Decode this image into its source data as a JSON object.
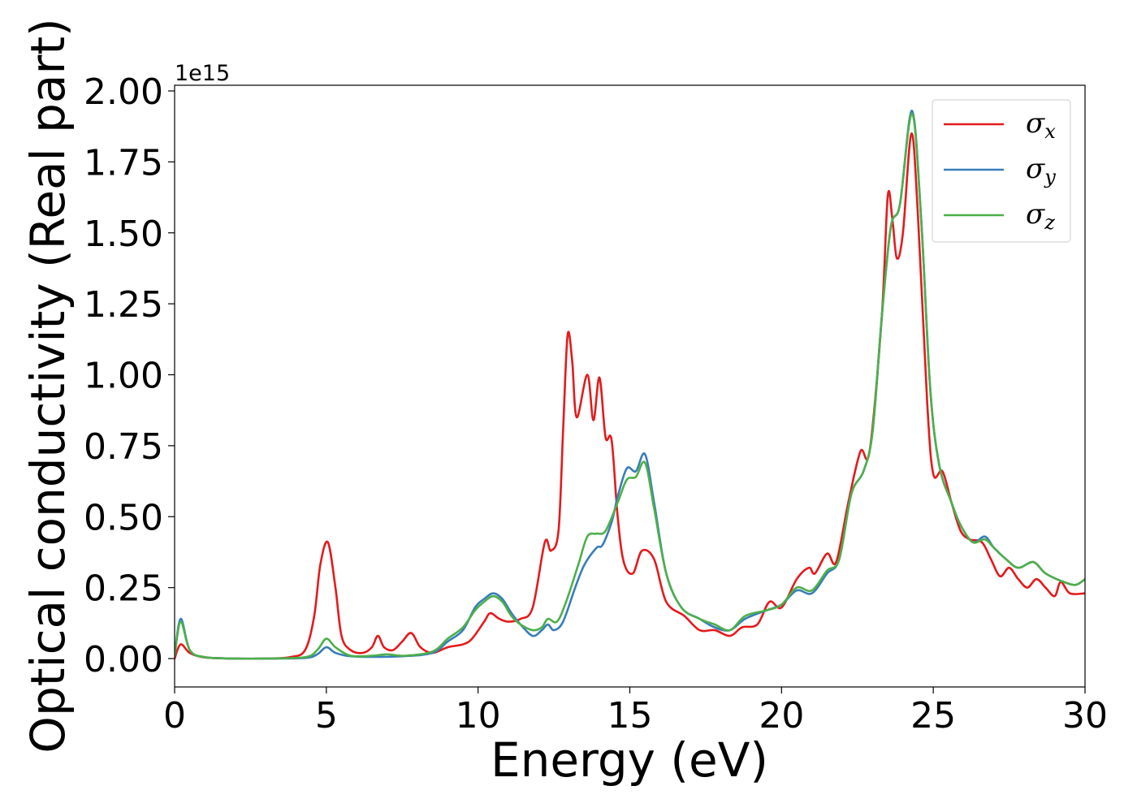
{
  "chart_data": {
    "type": "line",
    "xlabel": "Energy (eV)",
    "ylabel": "Optical conductivity (Real part)",
    "y_offset_label": "1e15",
    "xlim": [
      0,
      30
    ],
    "ylim": [
      -0.1,
      2.02
    ],
    "x_ticks": [
      0,
      5,
      10,
      15,
      20,
      25,
      30
    ],
    "x_tick_labels": [
      "0",
      "5",
      "10",
      "15",
      "20",
      "25",
      "30"
    ],
    "y_ticks": [
      0,
      0.25,
      0.5,
      0.75,
      1.0,
      1.25,
      1.5,
      1.75,
      2.0
    ],
    "y_tick_labels": [
      "0.00",
      "0.25",
      "0.50",
      "0.75",
      "1.00",
      "1.25",
      "1.50",
      "1.75",
      "2.00"
    ],
    "grid": false,
    "legend_position": "top-right",
    "series": [
      {
        "name": "σ_x",
        "base": "σ",
        "sub": "x",
        "color": "#e41a1c",
        "points": [
          [
            0,
            0
          ],
          [
            0.2,
            0.05
          ],
          [
            0.5,
            0.02
          ],
          [
            1,
            0.004
          ],
          [
            2,
            0
          ],
          [
            3,
            0
          ],
          [
            3.8,
            0.005
          ],
          [
            4.3,
            0.03
          ],
          [
            4.6,
            0.15
          ],
          [
            4.8,
            0.33
          ],
          [
            5.05,
            0.41
          ],
          [
            5.3,
            0.25
          ],
          [
            5.5,
            0.08
          ],
          [
            5.8,
            0.03
          ],
          [
            6.2,
            0.02
          ],
          [
            6.5,
            0.04
          ],
          [
            6.7,
            0.08
          ],
          [
            6.9,
            0.04
          ],
          [
            7.2,
            0.03
          ],
          [
            7.5,
            0.06
          ],
          [
            7.8,
            0.09
          ],
          [
            8.1,
            0.04
          ],
          [
            8.5,
            0.02
          ],
          [
            9,
            0.04
          ],
          [
            9.5,
            0.05
          ],
          [
            9.8,
            0.07
          ],
          [
            10.2,
            0.13
          ],
          [
            10.4,
            0.16
          ],
          [
            10.7,
            0.14
          ],
          [
            11,
            0.13
          ],
          [
            11.4,
            0.14
          ],
          [
            11.8,
            0.18
          ],
          [
            12.2,
            0.41
          ],
          [
            12.4,
            0.38
          ],
          [
            12.65,
            0.45
          ],
          [
            12.8,
            0.8
          ],
          [
            12.95,
            1.14
          ],
          [
            13.1,
            1.05
          ],
          [
            13.25,
            0.85
          ],
          [
            13.6,
            1.0
          ],
          [
            13.8,
            0.84
          ],
          [
            14.0,
            0.99
          ],
          [
            14.2,
            0.78
          ],
          [
            14.4,
            0.77
          ],
          [
            14.6,
            0.5
          ],
          [
            14.8,
            0.34
          ],
          [
            15.1,
            0.3
          ],
          [
            15.4,
            0.38
          ],
          [
            15.8,
            0.35
          ],
          [
            16.2,
            0.2
          ],
          [
            16.8,
            0.15
          ],
          [
            17.3,
            0.1
          ],
          [
            17.8,
            0.1
          ],
          [
            18.3,
            0.08
          ],
          [
            18.7,
            0.11
          ],
          [
            19.2,
            0.12
          ],
          [
            19.6,
            0.2
          ],
          [
            20.0,
            0.18
          ],
          [
            20.5,
            0.28
          ],
          [
            20.9,
            0.32
          ],
          [
            21.1,
            0.3
          ],
          [
            21.5,
            0.37
          ],
          [
            21.8,
            0.34
          ],
          [
            22.2,
            0.55
          ],
          [
            22.6,
            0.73
          ],
          [
            22.9,
            0.73
          ],
          [
            23.3,
            1.2
          ],
          [
            23.5,
            1.63
          ],
          [
            23.65,
            1.55
          ],
          [
            23.8,
            1.41
          ],
          [
            24.0,
            1.5
          ],
          [
            24.28,
            1.85
          ],
          [
            24.5,
            1.55
          ],
          [
            24.8,
            0.9
          ],
          [
            25.0,
            0.65
          ],
          [
            25.3,
            0.66
          ],
          [
            25.6,
            0.55
          ],
          [
            25.9,
            0.45
          ],
          [
            26.2,
            0.42
          ],
          [
            26.6,
            0.41
          ],
          [
            26.9,
            0.35
          ],
          [
            27.2,
            0.29
          ],
          [
            27.5,
            0.32
          ],
          [
            27.8,
            0.28
          ],
          [
            28.1,
            0.25
          ],
          [
            28.4,
            0.28
          ],
          [
            28.7,
            0.25
          ],
          [
            29.0,
            0.22
          ],
          [
            29.2,
            0.27
          ],
          [
            29.5,
            0.23
          ],
          [
            30,
            0.23
          ]
        ]
      },
      {
        "name": "σ_y",
        "base": "σ",
        "sub": "y",
        "color": "#377eb8",
        "points": [
          [
            0,
            0.01
          ],
          [
            0.2,
            0.14
          ],
          [
            0.5,
            0.03
          ],
          [
            1,
            0.005
          ],
          [
            2,
            0
          ],
          [
            3,
            0
          ],
          [
            4.3,
            0.002
          ],
          [
            4.7,
            0.015
          ],
          [
            5.0,
            0.04
          ],
          [
            5.3,
            0.02
          ],
          [
            5.8,
            0.008
          ],
          [
            6.5,
            0.006
          ],
          [
            7.5,
            0.008
          ],
          [
            8.5,
            0.02
          ],
          [
            9.0,
            0.06
          ],
          [
            9.5,
            0.1
          ],
          [
            9.9,
            0.18
          ],
          [
            10.2,
            0.21
          ],
          [
            10.5,
            0.23
          ],
          [
            10.8,
            0.21
          ],
          [
            11.1,
            0.16
          ],
          [
            11.4,
            0.12
          ],
          [
            11.8,
            0.08
          ],
          [
            12.1,
            0.1
          ],
          [
            12.3,
            0.12
          ],
          [
            12.5,
            0.1
          ],
          [
            12.8,
            0.13
          ],
          [
            13.2,
            0.25
          ],
          [
            13.5,
            0.33
          ],
          [
            13.9,
            0.39
          ],
          [
            14.1,
            0.4
          ],
          [
            14.4,
            0.48
          ],
          [
            14.6,
            0.57
          ],
          [
            14.9,
            0.67
          ],
          [
            15.2,
            0.66
          ],
          [
            15.5,
            0.72
          ],
          [
            15.8,
            0.55
          ],
          [
            16.2,
            0.3
          ],
          [
            16.7,
            0.18
          ],
          [
            17.3,
            0.14
          ],
          [
            17.8,
            0.11
          ],
          [
            18.3,
            0.1
          ],
          [
            18.8,
            0.14
          ],
          [
            19.5,
            0.17
          ],
          [
            20.0,
            0.19
          ],
          [
            20.5,
            0.24
          ],
          [
            21.0,
            0.23
          ],
          [
            21.5,
            0.3
          ],
          [
            21.9,
            0.35
          ],
          [
            22.3,
            0.58
          ],
          [
            22.7,
            0.66
          ],
          [
            23.0,
            0.8
          ],
          [
            23.3,
            1.2
          ],
          [
            23.6,
            1.52
          ],
          [
            23.9,
            1.6
          ],
          [
            24.3,
            1.93
          ],
          [
            24.6,
            1.55
          ],
          [
            24.9,
            0.95
          ],
          [
            25.2,
            0.68
          ],
          [
            25.6,
            0.55
          ],
          [
            25.9,
            0.47
          ],
          [
            26.3,
            0.41
          ],
          [
            26.7,
            0.43
          ],
          [
            27.0,
            0.39
          ],
          [
            27.4,
            0.35
          ],
          [
            27.8,
            0.32
          ],
          [
            28.3,
            0.34
          ],
          [
            28.7,
            0.3
          ],
          [
            29.3,
            0.27
          ],
          [
            29.7,
            0.26
          ],
          [
            30,
            0.28
          ]
        ]
      },
      {
        "name": "σ_z",
        "base": "σ",
        "sub": "z",
        "color": "#4daf4a",
        "points": [
          [
            0,
            0.01
          ],
          [
            0.2,
            0.13
          ],
          [
            0.5,
            0.03
          ],
          [
            1,
            0.005
          ],
          [
            2,
            0
          ],
          [
            3,
            0
          ],
          [
            4.3,
            0.005
          ],
          [
            4.7,
            0.03
          ],
          [
            5.0,
            0.07
          ],
          [
            5.3,
            0.04
          ],
          [
            5.8,
            0.01
          ],
          [
            6.5,
            0.01
          ],
          [
            7.0,
            0.015
          ],
          [
            7.6,
            0.01
          ],
          [
            8.5,
            0.025
          ],
          [
            9.0,
            0.07
          ],
          [
            9.5,
            0.11
          ],
          [
            9.9,
            0.17
          ],
          [
            10.2,
            0.2
          ],
          [
            10.5,
            0.22
          ],
          [
            10.8,
            0.2
          ],
          [
            11.1,
            0.15
          ],
          [
            11.4,
            0.12
          ],
          [
            11.8,
            0.1
          ],
          [
            12.1,
            0.11
          ],
          [
            12.3,
            0.14
          ],
          [
            12.6,
            0.13
          ],
          [
            12.9,
            0.2
          ],
          [
            13.3,
            0.33
          ],
          [
            13.6,
            0.43
          ],
          [
            13.9,
            0.44
          ],
          [
            14.2,
            0.45
          ],
          [
            14.6,
            0.55
          ],
          [
            14.9,
            0.63
          ],
          [
            15.2,
            0.64
          ],
          [
            15.5,
            0.69
          ],
          [
            15.8,
            0.53
          ],
          [
            16.2,
            0.3
          ],
          [
            16.7,
            0.18
          ],
          [
            17.3,
            0.14
          ],
          [
            17.8,
            0.12
          ],
          [
            18.3,
            0.1
          ],
          [
            18.8,
            0.15
          ],
          [
            19.5,
            0.17
          ],
          [
            20.0,
            0.19
          ],
          [
            20.5,
            0.25
          ],
          [
            21.0,
            0.24
          ],
          [
            21.5,
            0.31
          ],
          [
            21.9,
            0.35
          ],
          [
            22.3,
            0.58
          ],
          [
            22.7,
            0.66
          ],
          [
            23.0,
            0.8
          ],
          [
            23.3,
            1.2
          ],
          [
            23.6,
            1.52
          ],
          [
            23.9,
            1.6
          ],
          [
            24.3,
            1.92
          ],
          [
            24.6,
            1.55
          ],
          [
            24.9,
            0.95
          ],
          [
            25.2,
            0.68
          ],
          [
            25.6,
            0.55
          ],
          [
            25.9,
            0.47
          ],
          [
            26.3,
            0.41
          ],
          [
            26.7,
            0.42
          ],
          [
            27.0,
            0.39
          ],
          [
            27.4,
            0.35
          ],
          [
            27.8,
            0.32
          ],
          [
            28.3,
            0.34
          ],
          [
            28.7,
            0.3
          ],
          [
            29.3,
            0.27
          ],
          [
            29.7,
            0.26
          ],
          [
            30,
            0.28
          ]
        ]
      }
    ]
  }
}
